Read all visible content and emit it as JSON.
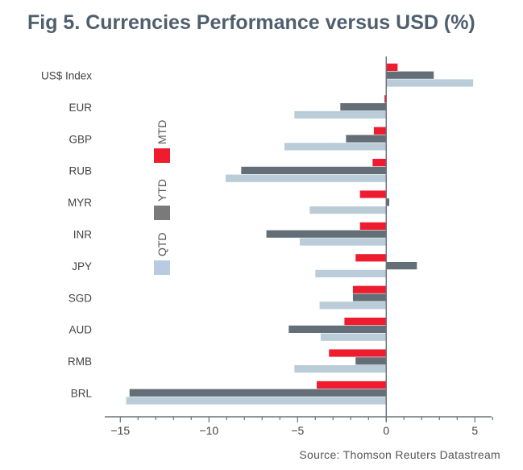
{
  "title": "Fig 5. Currencies Performance versus USD (%)",
  "source": "Source: Thomson Reuters Datastream",
  "chart_data": {
    "type": "bar",
    "orientation": "horizontal",
    "categories": [
      "US$ Index",
      "EUR",
      "GBP",
      "RUB",
      "MYR",
      "INR",
      "JPY",
      "SGD",
      "AUD",
      "RMB",
      "BRL"
    ],
    "series": [
      {
        "name": "MTD",
        "color": "#ee1c2e",
        "values": [
          0.64,
          -0.1,
          -0.7,
          -0.77,
          -1.48,
          -1.48,
          -1.73,
          -1.88,
          -2.36,
          -3.23,
          -3.92
        ]
      },
      {
        "name": "YTD",
        "color": "#646e77",
        "values": [
          2.68,
          -2.59,
          -2.27,
          -8.18,
          0.17,
          -6.76,
          1.73,
          -1.88,
          -5.5,
          -1.73,
          -14.48
        ]
      },
      {
        "name": "QTD",
        "color": "#b9ccd7",
        "values": [
          4.9,
          -5.18,
          -5.74,
          -9.06,
          -4.32,
          -4.88,
          -4.0,
          -3.76,
          -3.7,
          -5.18,
          -14.67
        ]
      }
    ],
    "xlim": [
      -16,
      6
    ],
    "xticks": [
      "-15",
      "-10",
      "-5",
      "0",
      "5"
    ],
    "xtick_values": [
      -15,
      -10,
      -5,
      0,
      5
    ],
    "legend_placement": "left, vertical",
    "legend_colors": {
      "MTD": "#ee1c2e",
      "YTD": "#7a7a7a",
      "QTD": "#b8cbe2"
    },
    "grid": false
  }
}
